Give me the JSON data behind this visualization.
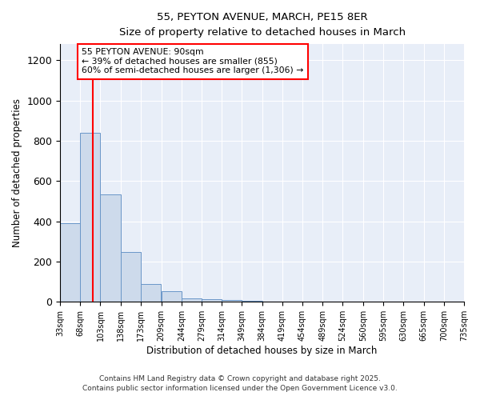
{
  "title": "55, PEYTON AVENUE, MARCH, PE15 8ER",
  "subtitle": "Size of property relative to detached houses in March",
  "xlabel": "Distribution of detached houses by size in March",
  "ylabel": "Number of detached properties",
  "bar_color": "#cddaeb",
  "bar_edge_color": "#6a96c8",
  "bg_color": "#e8eef8",
  "bin_edges": [
    33,
    68,
    103,
    138,
    173,
    209,
    244,
    279,
    314,
    349,
    384,
    419,
    454,
    489,
    524,
    560,
    595,
    630,
    665,
    700,
    735
  ],
  "bin_labels": [
    "33sqm",
    "68sqm",
    "103sqm",
    "138sqm",
    "173sqm",
    "209sqm",
    "244sqm",
    "279sqm",
    "314sqm",
    "349sqm",
    "384sqm",
    "419sqm",
    "454sqm",
    "489sqm",
    "524sqm",
    "560sqm",
    "595sqm",
    "630sqm",
    "665sqm",
    "700sqm",
    "735sqm"
  ],
  "counts": [
    390,
    840,
    535,
    248,
    90,
    52,
    18,
    13,
    10,
    5,
    0,
    0,
    0,
    0,
    0,
    0,
    0,
    0,
    0,
    0,
    7
  ],
  "red_line_x": 90,
  "annotation_title": "55 PEYTON AVENUE: 90sqm",
  "annotation_line2": "← 39% of detached houses are smaller (855)",
  "annotation_line3": "60% of semi-detached houses are larger (1,306) →",
  "ylim": [
    0,
    1280
  ],
  "yticks": [
    0,
    200,
    400,
    600,
    800,
    1000,
    1200
  ],
  "footnote1": "Contains HM Land Registry data © Crown copyright and database right 2025.",
  "footnote2": "Contains public sector information licensed under the Open Government Licence v3.0."
}
